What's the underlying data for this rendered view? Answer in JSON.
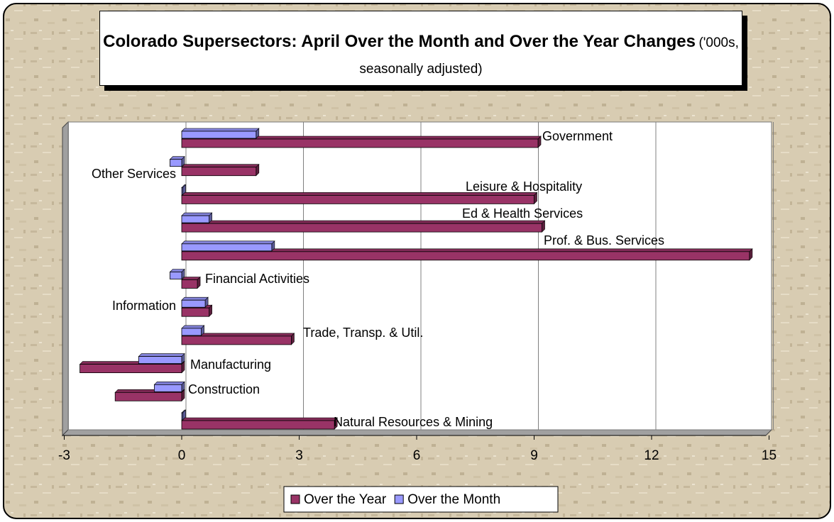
{
  "chart_data": {
    "type": "bar",
    "orientation": "horizontal",
    "title": "Colorado Supersectors: April Over the Month and Over the Year Changes",
    "subtitle": "('000s, seasonally adjusted)",
    "categories": [
      "Natural Resources & Mining",
      "Construction",
      "Manufacturing",
      "Trade, Transp. & Util.",
      "Information",
      "Financial Activities",
      "Prof. & Bus. Services",
      "Ed & Health Services",
      "Leisure & Hospitality",
      "Other Services",
      "Government"
    ],
    "series": [
      {
        "name": "Over the Year",
        "color": "#993366",
        "values": [
          3.9,
          -1.7,
          -2.6,
          2.8,
          0.7,
          0.4,
          14.5,
          9.2,
          9.0,
          1.9,
          9.1
        ]
      },
      {
        "name": "Over the Month",
        "color": "#9999ff",
        "values": [
          0.0,
          -0.7,
          -1.1,
          0.5,
          0.6,
          -0.3,
          2.3,
          0.7,
          0.0,
          -0.3,
          1.9
        ]
      }
    ],
    "xlim": [
      -3,
      15
    ],
    "xticks": [
      -3,
      0,
      3,
      6,
      9,
      12,
      15
    ],
    "grid": true,
    "legend": "bottom"
  }
}
